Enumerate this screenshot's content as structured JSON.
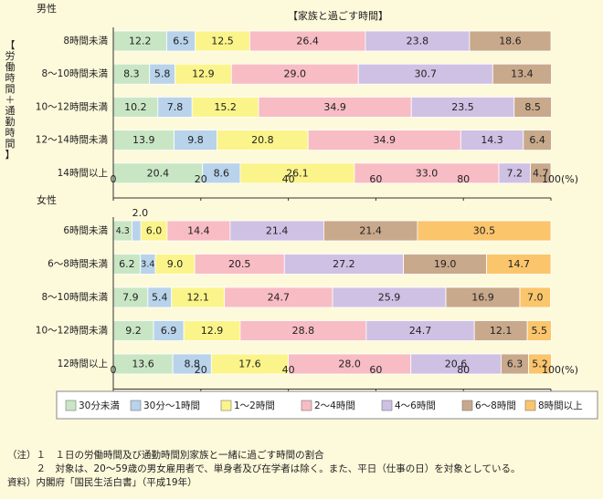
{
  "chart_data": {
    "type": "bar",
    "orientation": "horizontal",
    "stacked": true,
    "title": "【家族と過ごす時間】",
    "side_label": "【労働時間＋通勤時間】",
    "xlim": [
      0,
      100
    ],
    "x_ticks": [
      0,
      20,
      40,
      60,
      80,
      100
    ],
    "x_unit": "(%)",
    "legend_position": "bottom",
    "legend": [
      {
        "name": "30分未満",
        "color": "#c9e6c4"
      },
      {
        "name": "30分～1時間",
        "color": "#b8d3ea"
      },
      {
        "name": "1～2時間",
        "color": "#fbf48a"
      },
      {
        "name": "2～4時間",
        "color": "#f8bcc4"
      },
      {
        "name": "4～6時間",
        "color": "#cfc1e4"
      },
      {
        "name": "6～8時間",
        "color": "#c9a98b"
      },
      {
        "name": "8時間以上",
        "color": "#fbc56c"
      }
    ],
    "panels": [
      {
        "label": "男性",
        "categories": [
          "8時間未満",
          "8～10時間未満",
          "10～12時間未満",
          "12～14時間未満",
          "14時間以上"
        ],
        "rows": [
          [
            12.2,
            6.5,
            12.5,
            26.4,
            23.8,
            18.6,
            0
          ],
          [
            8.3,
            5.8,
            12.9,
            29.0,
            30.7,
            13.4,
            0
          ],
          [
            10.2,
            7.8,
            15.2,
            34.9,
            23.5,
            8.5,
            0
          ],
          [
            13.9,
            9.8,
            20.8,
            34.9,
            14.3,
            6.4,
            0
          ],
          [
            20.4,
            8.6,
            26.1,
            33.0,
            7.2,
            4.7,
            0
          ]
        ]
      },
      {
        "label": "女性",
        "categories": [
          "6時間未満",
          "6～8時間未満",
          "8～10時間未満",
          "10～12時間未満",
          "12時間以上"
        ],
        "rows": [
          [
            4.3,
            2.0,
            6.0,
            14.4,
            21.4,
            21.4,
            30.5
          ],
          [
            6.2,
            3.4,
            9.0,
            20.5,
            27.2,
            19.0,
            14.7
          ],
          [
            7.9,
            5.4,
            12.1,
            24.7,
            25.9,
            16.9,
            7.0
          ],
          [
            9.2,
            6.9,
            12.9,
            28.8,
            24.7,
            12.1,
            5.5
          ],
          [
            13.6,
            8.8,
            17.6,
            28.0,
            20.6,
            6.3,
            5.2
          ]
        ]
      }
    ]
  },
  "notes": {
    "line1": "（注）１　１日の労働時間及び通勤時間別家族と一緒に過ごす時間の割合",
    "line2": "　　　２　対象は、20～59歳の男女雇用者で、単身者及び在学者は除く。また、平日（仕事の日）を対象としている。",
    "line3": "資料）内閣府「国民生活白書」（平成19年）"
  }
}
